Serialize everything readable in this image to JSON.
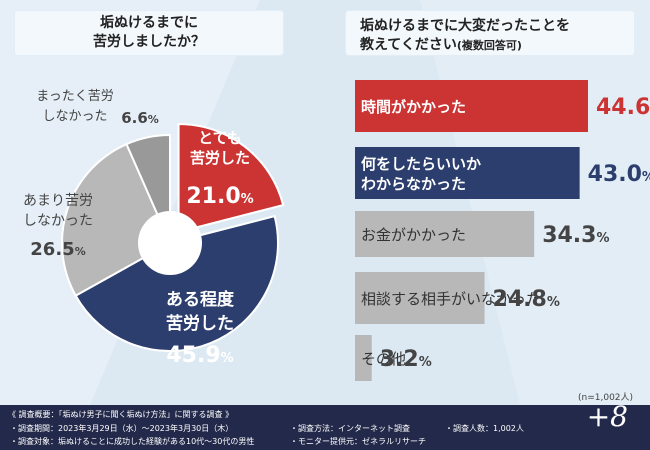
{
  "left_question": {
    "line1": "垢ぬけるまでに",
    "line2": "苦労しましたか？"
  },
  "right_question": {
    "line1": "垢ぬけるまでに大変だったことを",
    "line2": "教えてください",
    "suffix": "(複数回答可)"
  },
  "sample_note": "(n=1,002人)",
  "footer": {
    "title": "《 調査概要：「垢ぬけ男子に聞く垢ぬけ方法」に関する調査 》",
    "period": "・調査期間：2023年3月29日（水）〜2023年3月30日（木）",
    "target": "・調査対象：垢ぬけることに成功した経験がある10代〜30代の男性",
    "method": "・調査方法：インターネット調査",
    "provider": "・モニター提供元：ゼネラルリサーチ",
    "count": "・調査人数：1,002人",
    "logo": "+8"
  },
  "colors": {
    "red": "#cc3333",
    "navy": "#2c3e6e",
    "gray": "#b8b8b8",
    "darkgray": "#999999",
    "bg": "#dce9f3"
  },
  "chart_data": [
    {
      "type": "pie",
      "title": "垢ぬけるまでに苦労しましたか？",
      "slices": [
        {
          "label": "とても苦労した",
          "value": 21.0,
          "value_text": "21.0%"
        },
        {
          "label": "ある程度苦労した",
          "value": 45.9,
          "value_text": "45.9%"
        },
        {
          "label": "あまり苦労しなかった",
          "value": 26.5,
          "value_text": "26.5%"
        },
        {
          "label": "まったく苦労しなかった",
          "value": 6.6,
          "value_text": "6.6%"
        }
      ]
    },
    {
      "type": "bar",
      "title": "垢ぬけるまでに大変だったことを教えてください(複数回答可)",
      "categories": [
        "時間がかかった",
        "何をしたらいいかわからなかった",
        "お金がかかった",
        "相談する相手がいなかった",
        "その他"
      ],
      "values": [
        44.6,
        43.0,
        34.3,
        24.8,
        3.2
      ],
      "value_texts": [
        "44.6%",
        "43.0%",
        "34.3%",
        "24.8%",
        "3.2%"
      ],
      "label_lines": [
        [
          "時間がかかった"
        ],
        [
          "何をしたらいいか",
          "わからなかった"
        ],
        [
          "お金がかかった"
        ],
        [
          "相談する相手がいなかった"
        ],
        [
          "その他"
        ]
      ],
      "xlim": [
        0,
        50
      ]
    }
  ]
}
